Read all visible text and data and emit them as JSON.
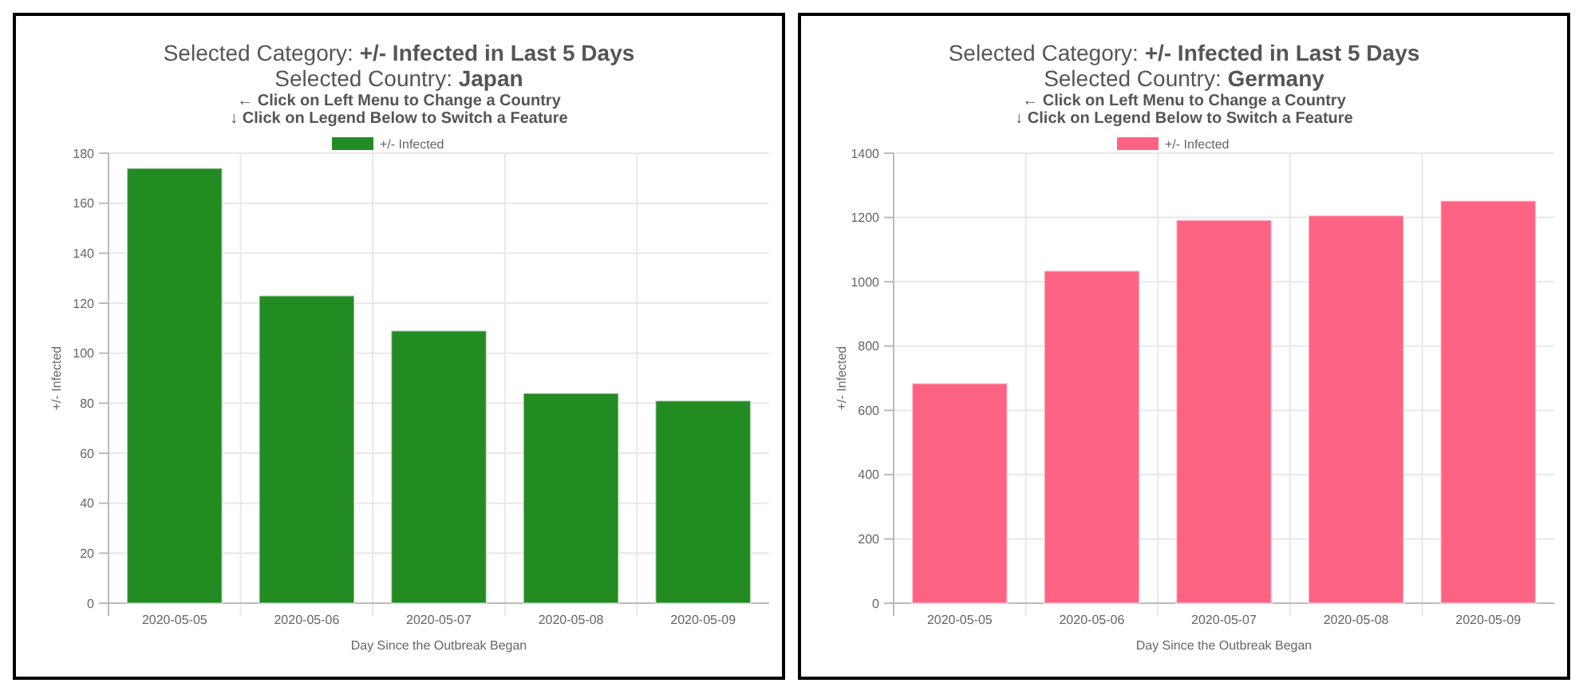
{
  "chart_data": [
    {
      "type": "bar",
      "title": "Selected Category: +/- Infected in Last 5 Days",
      "subtitle": "Selected Country: Japan",
      "annotations": [
        "← Click on Left Menu to Change a Country",
        "↓ Click on Legend Below to Switch a Feature"
      ],
      "xlabel": "Day Since the Outbreak Began",
      "ylabel": "+/- Infected",
      "categories": [
        "2020-05-05",
        "2020-05-06",
        "2020-05-07",
        "2020-05-08",
        "2020-05-09"
      ],
      "series": [
        {
          "name": "+/- Infected",
          "color": "#228b22",
          "values": [
            174,
            123,
            109,
            84,
            81
          ]
        }
      ],
      "ylim": [
        0,
        180
      ],
      "yticks": [
        0,
        20,
        40,
        60,
        80,
        100,
        120,
        140,
        160,
        180
      ],
      "grid": true,
      "legend": "top"
    },
    {
      "type": "bar",
      "title": "Selected Category: +/- Infected in Last 5 Days",
      "subtitle": "Selected Country: Germany",
      "annotations": [
        "← Click on Left Menu to Change a Country",
        "↓ Click on Legend Below to Switch a Feature"
      ],
      "xlabel": "Day Since the Outbreak Began",
      "ylabel": "+/- Infected",
      "categories": [
        "2020-05-05",
        "2020-05-06",
        "2020-05-07",
        "2020-05-08",
        "2020-05-09"
      ],
      "series": [
        {
          "name": "+/- Infected",
          "color": "#ff6384",
          "values": [
            684,
            1034,
            1192,
            1206,
            1252
          ]
        }
      ],
      "ylim": [
        0,
        1400
      ],
      "yticks": [
        0,
        200,
        400,
        600,
        800,
        1000,
        1200,
        1400
      ],
      "grid": true,
      "legend": "top"
    }
  ]
}
